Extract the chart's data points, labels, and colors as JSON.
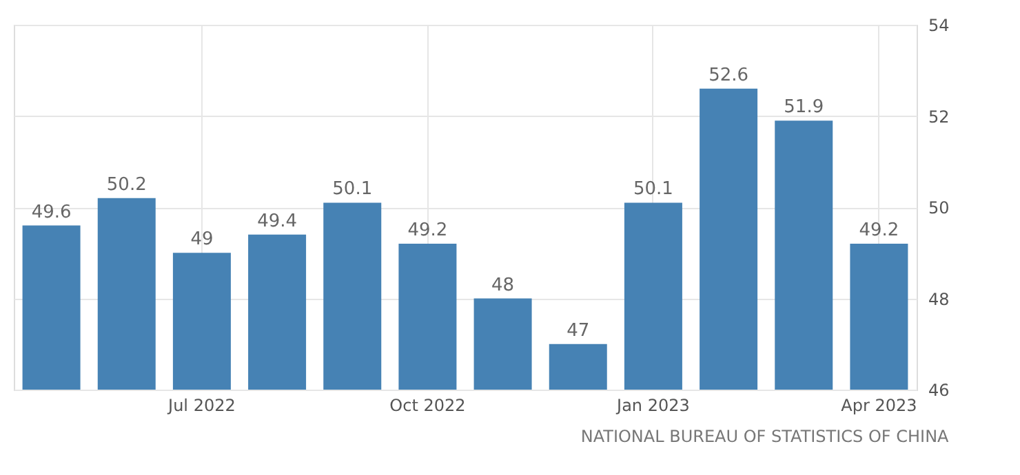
{
  "chart_data": {
    "type": "bar",
    "categories": [
      null,
      null,
      "Jul 2022",
      null,
      null,
      "Oct 2022",
      null,
      null,
      "Jan 2023",
      null,
      null,
      "Apr 2023"
    ],
    "series": [
      {
        "color": "#4682b4",
        "values": [
          49.6,
          50.2,
          49,
          49.4,
          50.1,
          49.2,
          48,
          47,
          50.1,
          52.6,
          51.9,
          49.2
        ]
      }
    ],
    "ylim": [
      46,
      54
    ],
    "yticks": [
      46,
      48,
      50,
      52,
      54
    ],
    "grid": true,
    "data_labels": true,
    "annotations": [
      "NATIONAL BUREAU OF STATISTICS OF CHINA"
    ]
  }
}
